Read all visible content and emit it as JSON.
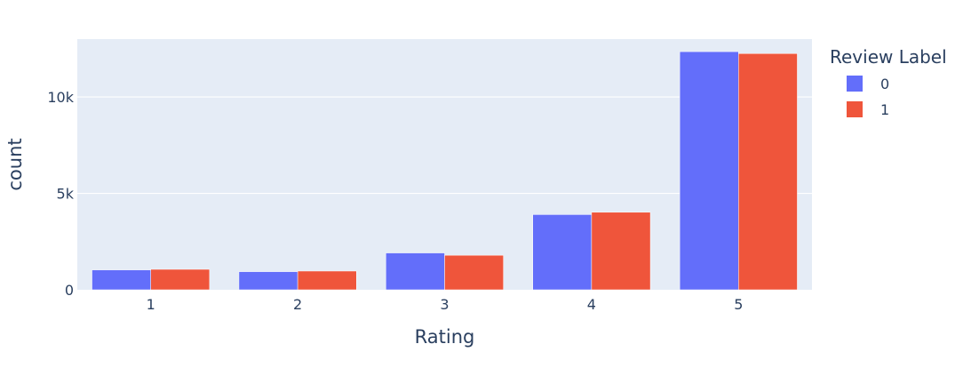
{
  "chart_data": {
    "type": "bar",
    "categories": [
      "1",
      "2",
      "3",
      "4",
      "5"
    ],
    "series": [
      {
        "name": "0",
        "values": [
          1030,
          940,
          1910,
          3900,
          12350
        ],
        "color": "#636efa"
      },
      {
        "name": "1",
        "values": [
          1060,
          970,
          1790,
          4020,
          12250
        ],
        "color": "#ef553b"
      }
    ],
    "xlabel": "Rating",
    "ylabel": "count",
    "ylim": [
      0,
      13000
    ],
    "yticks": [
      0,
      5000,
      10000
    ],
    "ytick_labels": [
      "0",
      "5k",
      "10k"
    ],
    "legend": {
      "title": "Review Label",
      "position": "top-right"
    },
    "grid": true,
    "plot_background": "#e5ecf6"
  }
}
